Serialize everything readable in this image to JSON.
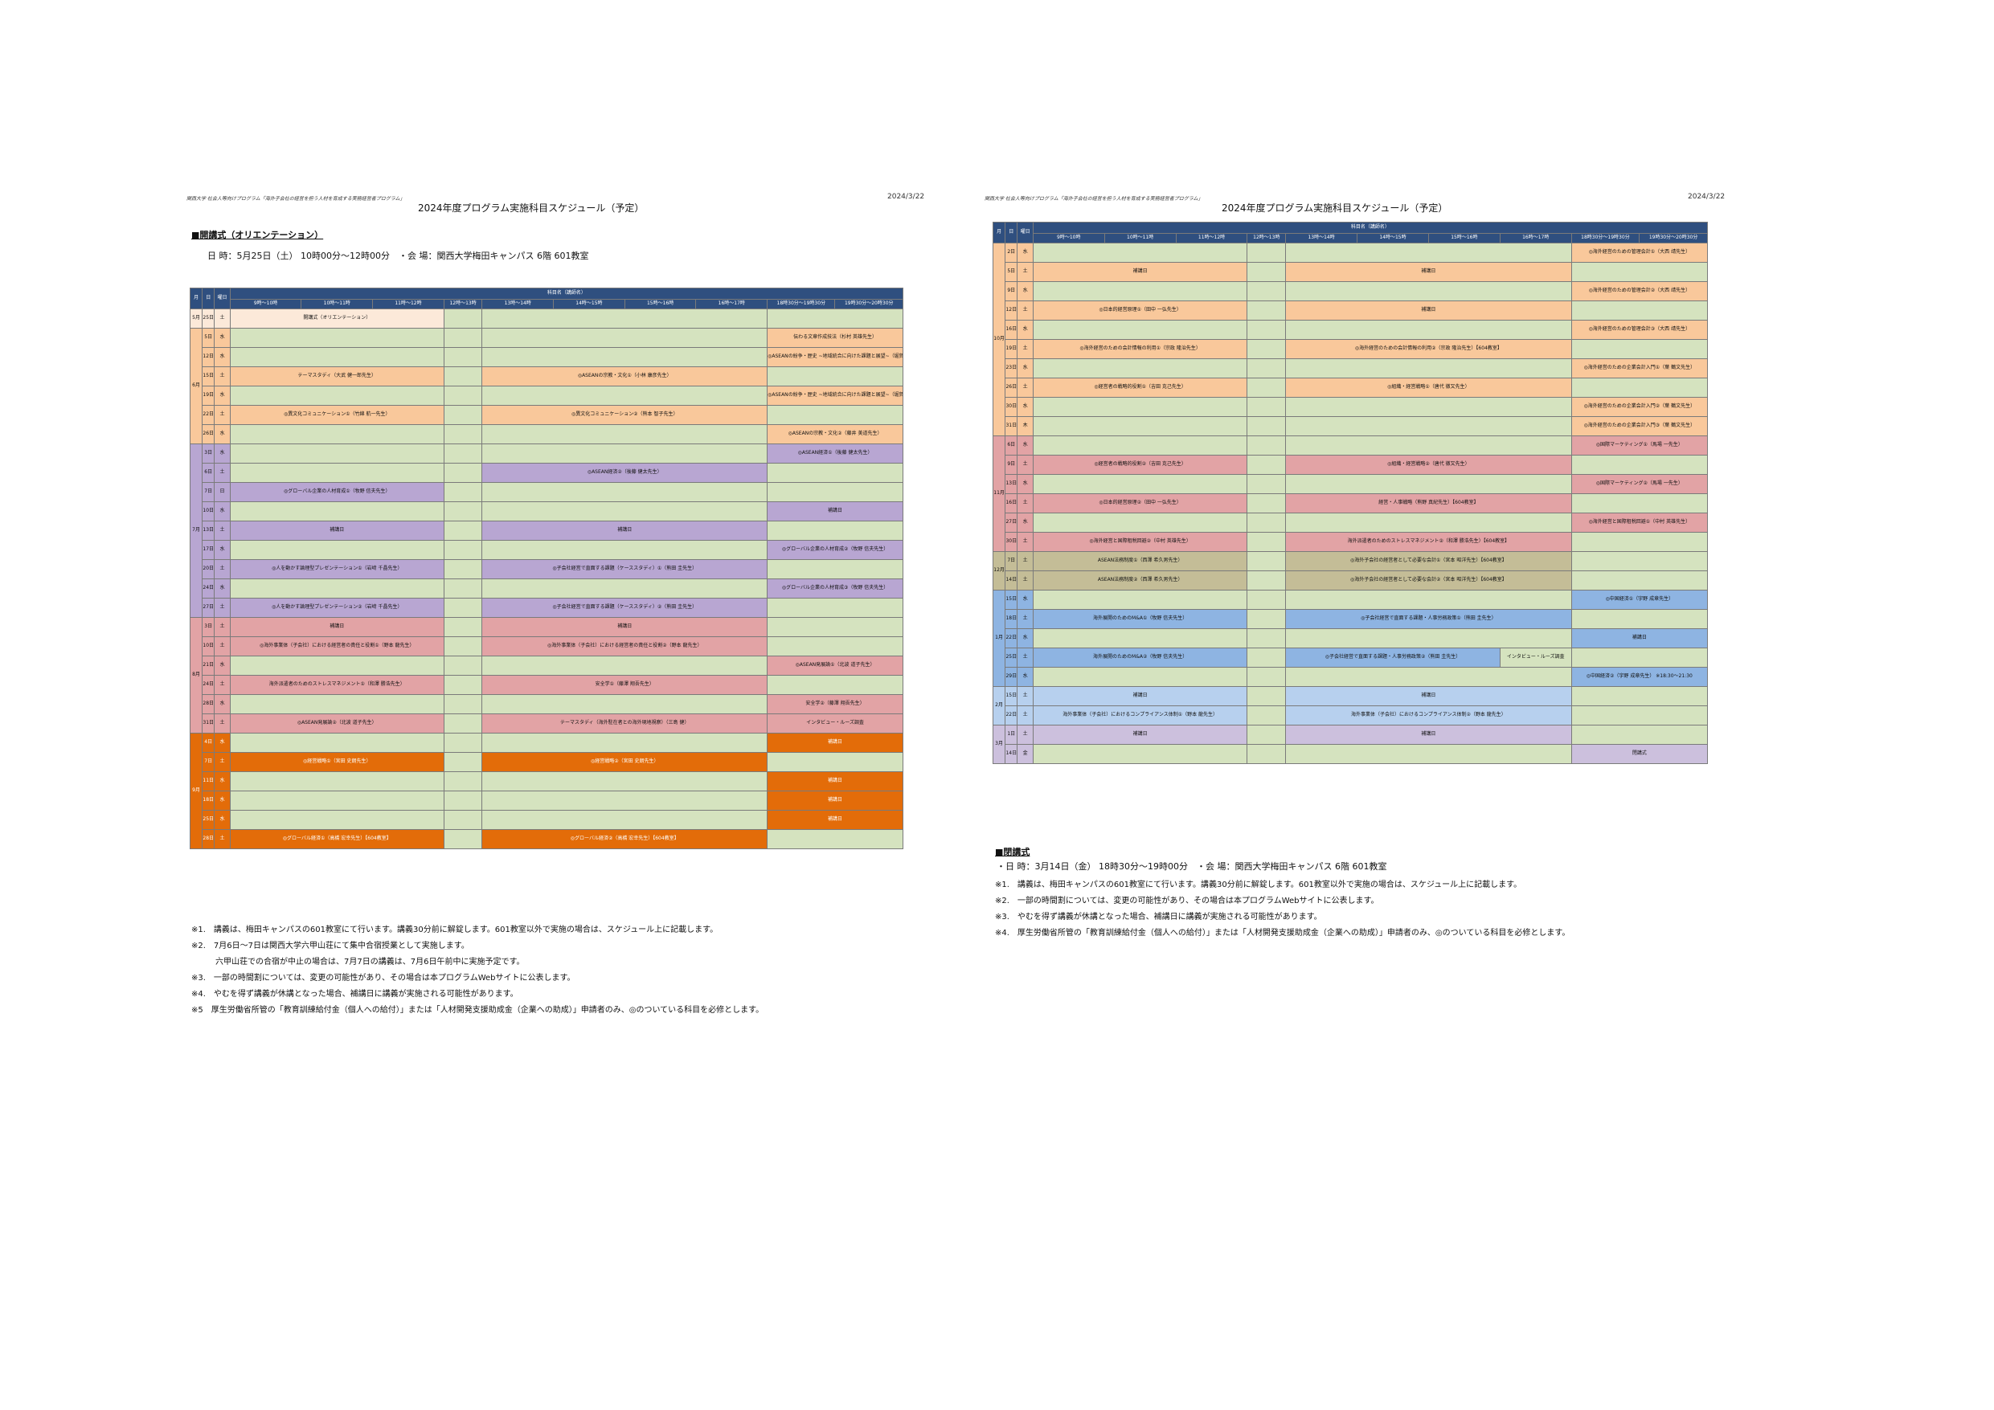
{
  "left": {
    "org_line": "関西大学 社会人等向けプログラム「海外子会社の経営を担う人材を育成する実務経営者プログラム」",
    "date": "2024/3/22",
    "title": "2024年度プログラム実施科目スケジュール（予定）",
    "opening": {
      "heading": "■開講式（オリエンテーション）",
      "line": "日 時：5月25日（土） 10時00分～12時00分　・会 場：関西大学梅田キャンパス 6階 601教室"
    },
    "header": {
      "month": "月",
      "day": "日",
      "dow": "曜日",
      "subject": "科目名（講師名）",
      "slots": [
        "9時～10時",
        "10時～11時",
        "11時～12時",
        "12時～13時",
        "13時～14時",
        "14時～15時",
        "15時～16時",
        "16時～17時",
        "18時30分～19時30分",
        "19時30分～20時30分"
      ]
    },
    "rows": [
      {
        "m": "5月",
        "d": "25日",
        "w": "土",
        "am": "開講式（オリエンテーション）",
        "pm": "",
        "ev": ""
      },
      {
        "m": "6月",
        "d": "5日",
        "w": "水",
        "am": "",
        "pm": "",
        "ev": "伝わる文章作成技法（杉村 英雄先生）"
      },
      {
        "m": "",
        "d": "12日",
        "w": "水",
        "am": "",
        "pm": "",
        "ev": "◎ASEANの紛争・歴史 ~地域統合に向けた課題と展望~（堀賀 精哉先生）"
      },
      {
        "m": "",
        "d": "15日",
        "w": "土",
        "am": "テーマスタディ（大武 健一郎先生）",
        "pm": "◎ASEANの宗教・文化①（小林 康彦先生）",
        "ev": ""
      },
      {
        "m": "",
        "d": "19日",
        "w": "水",
        "am": "",
        "pm": "",
        "ev": "◎ASEANの紛争・歴史 ~地域統合に向けた課題と展望~（堀賀 精哉先生）"
      },
      {
        "m": "",
        "d": "22日",
        "w": "土",
        "am": "◎異文化コミュニケーション①（竹綿 航一先生）",
        "pm": "◎異文化コミュニケーション②（熊本 智子先生）",
        "ev": ""
      },
      {
        "m": "",
        "d": "26日",
        "w": "水",
        "am": "",
        "pm": "",
        "ev": "◎ASEANの宗教・文化②（藤井 美道先生）"
      },
      {
        "m": "7月",
        "d": "3日",
        "w": "水",
        "am": "",
        "pm": "",
        "ev": "◎ASEAN経済①（後藤 健太先生）"
      },
      {
        "m": "",
        "d": "6日",
        "w": "土",
        "am": "",
        "pm": "◎ASEAN経済②（後藤 健太先生）",
        "ev": ""
      },
      {
        "m": "",
        "d": "7日",
        "w": "日",
        "am": "◎グローバル企業の人材育成①（牧野 信夫先生）",
        "pm": "",
        "ev": ""
      },
      {
        "m": "",
        "d": "10日",
        "w": "水",
        "am": "",
        "pm": "",
        "ev": "補講日"
      },
      {
        "m": "",
        "d": "13日",
        "w": "土",
        "am": "補講日",
        "pm": "補講日",
        "ev": ""
      },
      {
        "m": "",
        "d": "17日",
        "w": "水",
        "am": "",
        "pm": "",
        "ev": "◎グローバル企業の人材育成②（牧野 信夫先生）"
      },
      {
        "m": "",
        "d": "20日",
        "w": "土",
        "am": "◎人を動かす論理型プレゼンテーション①（岩﨑 千晶先生）",
        "pm": "◎子会社経営で直面する課題（ケーススタディ）①（熊田 圭先生）",
        "ev": ""
      },
      {
        "m": "",
        "d": "24日",
        "w": "水",
        "am": "",
        "pm": "",
        "ev": "◎グローバル企業の人材育成③（牧野 信夫先生）"
      },
      {
        "m": "",
        "d": "27日",
        "w": "土",
        "am": "◎人を動かす論理型プレゼンテーション②（岩﨑 千晶先生）",
        "pm": "◎子会社経営で直面する課題（ケーススタディ）②（熊田 圭先生）",
        "ev": ""
      },
      {
        "m": "8月",
        "d": "3日",
        "w": "土",
        "am": "補講日",
        "pm": "補講日",
        "ev": ""
      },
      {
        "m": "",
        "d": "10日",
        "w": "土",
        "am": "◎海外事業体（子会社）における経営者の責任と役割①（野本 龍先生）",
        "pm": "◎海外事業体（子会社）における経営者の責任と役割②（野本 龍先生）",
        "ev": ""
      },
      {
        "m": "",
        "d": "21日",
        "w": "水",
        "am": "",
        "pm": "",
        "ev": "◎ASEAN発展論①（北波 道子先生）"
      },
      {
        "m": "",
        "d": "24日",
        "w": "土",
        "am": "海外派遣者のためのストレスマネジメント①（和澤 勝浩先生）",
        "pm": "安全学①（藤澤 翔吾先生）",
        "ev": ""
      },
      {
        "m": "",
        "d": "28日",
        "w": "水",
        "am": "",
        "pm": "",
        "ev": "安全学②（藤澤 翔吾先生）"
      },
      {
        "m": "",
        "d": "31日",
        "w": "土",
        "am": "◎ASEAN発展論②（北波 道子先生）",
        "pm": "テーマスタディ（海外駐在者との海外現地視察）（三島 健）",
        "ev": "インタビュー・ルーズ調査"
      },
      {
        "m": "9月",
        "d": "4日",
        "w": "水",
        "am": "",
        "pm": "",
        "ev": "補講日"
      },
      {
        "m": "",
        "d": "7日",
        "w": "土",
        "am": "◎経営戦略①（宮田 史朗先生）",
        "pm": "◎経営戦略②（宮田 史朗先生）",
        "ev": ""
      },
      {
        "m": "",
        "d": "11日",
        "w": "水",
        "am": "",
        "pm": "",
        "ev": "補講日"
      },
      {
        "m": "",
        "d": "18日",
        "w": "水",
        "am": "",
        "pm": "",
        "ev": "補講日"
      },
      {
        "m": "",
        "d": "25日",
        "w": "水",
        "am": "",
        "pm": "",
        "ev": "補講日"
      },
      {
        "m": "",
        "d": "28日",
        "w": "土",
        "am": "◎グローバル経済①（高橋 宏幸先生）【604教室】",
        "pm": "◎グローバル経済②（高橋 宏幸先生）【604教室】",
        "ev": ""
      }
    ],
    "notes": [
      "※1.　講義は、梅田キャンパスの601教室にて行います。講義30分前に解錠します。601教室以外で実施の場合は、スケジュール上に記載します。",
      "※2.　7月6日～7日は関西大学六甲山荘にて集中合宿授業として実施します。",
      "　　　六甲山荘での合宿が中止の場合は、7月7日の講義は、7月6日午前中に実施予定です。",
      "※3.　一部の時間割については、変更の可能性があり、その場合は本プログラムWebサイトに公表します。",
      "※4.　やむを得ず講義が休講となった場合、補講日に講義が実施される可能性があります。",
      "※5　厚生労働省所管の「教育訓練給付金（個人への給付）」または「人材開発支援助成金（企業への助成）」申請者のみ、◎のついている科目を必修とします。"
    ]
  },
  "right": {
    "org_line": "関西大学 社会人等向けプログラム「海外子会社の経営を担う人材を育成する実務経営者プログラム」",
    "date": "2024/3/22",
    "title": "2024年度プログラム実施科目スケジュール（予定）",
    "header": {
      "month": "月",
      "day": "日",
      "dow": "曜日",
      "subject": "科目名（講師名）",
      "slots": [
        "9時～10時",
        "10時～11時",
        "11時～12時",
        "12時～13時",
        "13時～14時",
        "14時～15時",
        "15時～16時",
        "16時～17時",
        "18時30分～19時30分",
        "19時30分～20時30分"
      ]
    },
    "rows": [
      {
        "m": "10月",
        "d": "2日",
        "w": "水",
        "am": "",
        "pm": "",
        "ev": "◎海外経営のための管理会計①（大西 靖先生）"
      },
      {
        "m": "",
        "d": "5日",
        "w": "土",
        "am": "補講日",
        "pm": "補講日",
        "ev": ""
      },
      {
        "m": "",
        "d": "9日",
        "w": "水",
        "am": "",
        "pm": "",
        "ev": "◎海外経営のための管理会計②（大西 靖先生）"
      },
      {
        "m": "",
        "d": "12日",
        "w": "土",
        "am": "◎日本的経営原理①（田中 一弘先生）",
        "pm": "補講日",
        "ev": ""
      },
      {
        "m": "",
        "d": "16日",
        "w": "水",
        "am": "",
        "pm": "",
        "ev": "◎海外経営のための管理会計③（大西 靖先生）"
      },
      {
        "m": "",
        "d": "19日",
        "w": "土",
        "am": "◎海外経営のための会計情報の利用①（宗政 隆治先生）",
        "pm": "◎海外経営のための会計情報の利用②（宗政 隆治先生）【604教室】",
        "ev": ""
      },
      {
        "m": "",
        "d": "23日",
        "w": "水",
        "am": "",
        "pm": "",
        "ev": "◎海外経営のための企業会計入門①（葉 鶴文先生）"
      },
      {
        "m": "",
        "d": "26日",
        "w": "土",
        "am": "◎経営者の戦略的役割①（吉田 克己先生）",
        "pm": "◎組織・経営戦略①（唐代 徹又先生）",
        "ev": ""
      },
      {
        "m": "",
        "d": "30日",
        "w": "水",
        "am": "",
        "pm": "",
        "ev": "◎海外経営のための企業会計入門②（葉 鶴文先生）"
      },
      {
        "m": "",
        "d": "31日",
        "w": "木",
        "am": "",
        "pm": "",
        "ev": "◎海外経営のための企業会計入門③（葉 鶴文先生）"
      },
      {
        "m": "11月",
        "d": "6日",
        "w": "水",
        "am": "",
        "pm": "",
        "ev": "◎国際マーケティング①（馬場 一先生）"
      },
      {
        "m": "",
        "d": "9日",
        "w": "土",
        "am": "◎経営者の戦略的役割②（吉田 克己先生）",
        "pm": "◎組織・経営戦略②（唐代 徹又先生）",
        "ev": ""
      },
      {
        "m": "",
        "d": "13日",
        "w": "水",
        "am": "",
        "pm": "",
        "ev": "◎国際マーケティング②（馬場 一先生）"
      },
      {
        "m": "",
        "d": "16日",
        "w": "土",
        "am": "◎日本的経営原理②（田中 一弘先生）",
        "pm": "経営・人事戦略（熊野 真紀先生）【604教室】",
        "ev": ""
      },
      {
        "m": "",
        "d": "27日",
        "w": "水",
        "am": "",
        "pm": "",
        "ev": "◎海外経営と国際租税回避①（中村 英雄先生）"
      },
      {
        "m": "",
        "d": "30日",
        "w": "土",
        "am": "◎海外経営と国際租税回避②（中村 英雄先生）",
        "pm": "海外派遣者のためのストレスマネジメント②（和澤 勝浩先生）【604教室】",
        "ev": ""
      },
      {
        "m": "12月",
        "d": "7日",
        "w": "土",
        "am": "ASEAN法務制度①（西澤 希久男先生）",
        "pm": "◎海外子会社の経営者として必要な会計①（宮本 昭洋先生）【604教室】",
        "ev": ""
      },
      {
        "m": "",
        "d": "14日",
        "w": "土",
        "am": "ASEAN法務制度②（西澤 希久男先生）",
        "pm": "◎海外子会社の経営者として必要な会計②（宮本 昭洋先生）【604教室】",
        "ev": ""
      },
      {
        "m": "1月",
        "d": "15日",
        "w": "水",
        "am": "",
        "pm": "",
        "ev": "◎中国経済①（宇野 成章先生）"
      },
      {
        "m": "",
        "d": "18日",
        "w": "土",
        "am": "海外展開のためのM&A①（牧野 信夫先生）",
        "pm": "◎子会社経営で直面する課題・人事労務政策①（熊田 圭先生）",
        "ev": ""
      },
      {
        "m": "",
        "d": "22日",
        "w": "水",
        "am": "",
        "pm": "",
        "ev": "補講日"
      },
      {
        "m": "",
        "d": "25日",
        "w": "土",
        "am": "海外展開のためのM&A②（牧野 信夫先生）",
        "pm": "◎子会社経営で直面する課題・人事労務政策②（熊田 圭先生）",
        "ev2": "インタビュー・ルーズ調査",
        "ev": ""
      },
      {
        "m": "",
        "d": "29日",
        "w": "水",
        "am": "",
        "pm": "",
        "ev": "◎中国経済②（宇野 成章先生） ※18:30～21:30"
      },
      {
        "m": "2月",
        "d": "15日",
        "w": "土",
        "am": "補講日",
        "pm": "補講日",
        "ev": ""
      },
      {
        "m": "",
        "d": "22日",
        "w": "土",
        "am": "海外事業体（子会社）におけるコンプライアンス体制①（野本 龍先生）",
        "pm": "海外事業体（子会社）におけるコンプライアンス体制②（野本 龍先生）",
        "ev": ""
      },
      {
        "m": "3月",
        "d": "1日",
        "w": "土",
        "am": "補講日",
        "pm": "補講日",
        "ev": ""
      },
      {
        "m": "",
        "d": "14日",
        "w": "金",
        "am": "",
        "pm": "",
        "ev": "閉講式"
      }
    ],
    "closing": {
      "heading": "■閉講式",
      "line": "・日 時：3月14日（金） 18時30分～19時00分　・会 場：関西大学梅田キャンパス 6階 601教室"
    },
    "notes": [
      "※1.　講義は、梅田キャンパスの601教室にて行います。講義30分前に解錠します。601教室以外で実施の場合は、スケジュール上に記載します。",
      "※2.　一部の時間割については、変更の可能性があり、その場合は本プログラムWebサイトに公表します。",
      "※3.　やむを得ず講義が休講となった場合、補講日に講義が実施される可能性があります。",
      "※4.　厚生労働省所管の「教育訓練給付金（個人への給付）」または「人材開発支援助成金（企業への助成）」申請者のみ、◎のついている科目を必修とします。"
    ]
  }
}
